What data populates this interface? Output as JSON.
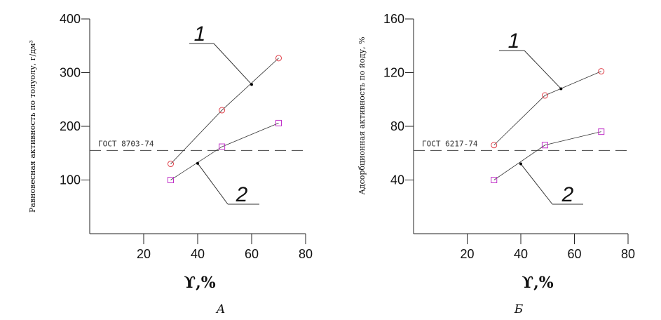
{
  "chart_data": [
    {
      "type": "line",
      "caption": "А",
      "ylabel": "Равновесная активность по толуолу, г/дм³",
      "xlabel": "ϒ,%",
      "xlim": [
        0,
        80
      ],
      "ylim": [
        0,
        400
      ],
      "xticks": [
        "20",
        "40",
        "60",
        "80"
      ],
      "yticks": [
        "100",
        "200",
        "300",
        "400"
      ],
      "grid": false,
      "x": [
        30,
        49,
        70
      ],
      "series": [
        {
          "name": "1",
          "values": [
            130,
            230,
            327
          ],
          "marker": "circle",
          "color": "#e0404a"
        },
        {
          "name": "2",
          "values": [
            100,
            162,
            206
          ],
          "marker": "square",
          "color": "#c030c8"
        }
      ],
      "reference_line": {
        "label": "ГОСТ 8703-74",
        "value": 155
      },
      "series_pointers": [
        {
          "label": "1",
          "x": 60,
          "y": 278
        },
        {
          "label": "2",
          "x": 40,
          "y": 131
        }
      ]
    },
    {
      "type": "line",
      "caption": "Б",
      "ylabel": "Адсорбционная активность по йоду, %",
      "xlabel": "ϒ,%",
      "xlim": [
        0,
        80
      ],
      "ylim": [
        0,
        160
      ],
      "xticks": [
        "20",
        "40",
        "60",
        "80"
      ],
      "yticks": [
        "40",
        "80",
        "120",
        "160"
      ],
      "grid": false,
      "x": [
        30,
        49,
        70
      ],
      "series": [
        {
          "name": "1",
          "values": [
            66,
            103,
            121
          ],
          "marker": "circle",
          "color": "#e0404a"
        },
        {
          "name": "2",
          "values": [
            40,
            66,
            76
          ],
          "marker": "square",
          "color": "#c030c8"
        }
      ],
      "reference_line": {
        "label": "ГОСТ 6217-74",
        "value": 62
      },
      "series_pointers": [
        {
          "label": "1",
          "x": 55,
          "y": 108
        },
        {
          "label": "2",
          "x": 40,
          "y": 52
        }
      ]
    }
  ]
}
